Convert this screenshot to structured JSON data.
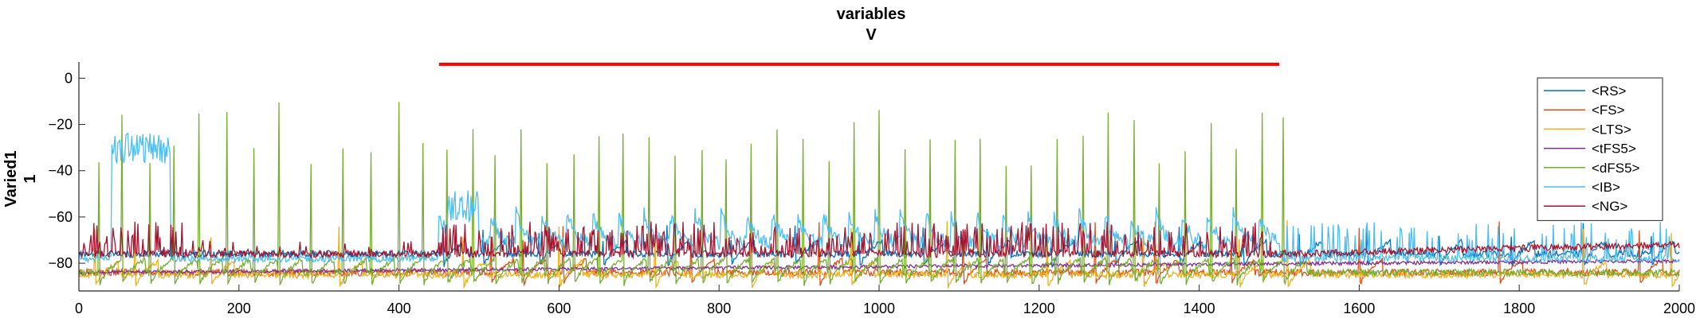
{
  "chart_data": {
    "type": "line",
    "title": "variables",
    "subtitle": "V",
    "ylabel": "Varied1",
    "ylabel2": "1",
    "xlim": [
      0,
      2000
    ],
    "ylim": [
      -92,
      7
    ],
    "xticks": [
      0,
      200,
      400,
      600,
      800,
      1000,
      1200,
      1400,
      1600,
      1800,
      2000
    ],
    "yticks": [
      0,
      -20,
      -40,
      -60,
      -80
    ],
    "grid": false,
    "legend_position": "top-right",
    "stimulus_bar": {
      "x_start": 450,
      "x_end": 1500,
      "y": 6,
      "color": "#ff0000"
    },
    "series": [
      {
        "name": "<RS>",
        "color": "#0072bd",
        "baseline": -76,
        "spike_peak": -62,
        "spike_times": [
          455,
          505,
          575,
          655,
          735,
          815,
          895,
          975,
          1055,
          1135,
          1215,
          1295,
          1375,
          1455,
          1525,
          1610,
          1700,
          1790,
          1880,
          1965
        ]
      },
      {
        "name": "<FS>",
        "color": "#d95319",
        "baseline": -84,
        "spike_peak": -62,
        "spike_times": [
          515,
          555,
          605,
          765,
          925,
          1105,
          1270,
          1345,
          1440,
          1600,
          1775,
          1950
        ]
      },
      {
        "name": "<LTS>",
        "color": "#edb120",
        "baseline": -85,
        "spike_peak": -60,
        "spike_times": [
          20,
          70,
          165,
          325,
          480,
          600,
          720,
          840,
          965,
          1085,
          1210,
          1330,
          1450,
          1510,
          1880,
          1990
        ]
      },
      {
        "name": "<tFS5>",
        "color": "#7e2f8e",
        "baseline": -82,
        "spike_peak": -82,
        "spike_times": []
      },
      {
        "name": "<dFS5>",
        "color": "#77ac30",
        "baseline": -84,
        "spike_peak": -10,
        "spike_times": [
          25,
          53,
          88,
          118,
          150,
          185,
          218,
          250,
          290,
          330,
          365,
          400,
          430,
          460,
          492,
          520,
          552,
          585,
          618,
          650,
          680,
          712,
          745,
          778,
          808,
          840,
          872,
          905,
          937,
          968,
          1000,
          1032,
          1063,
          1095,
          1126,
          1158,
          1190,
          1222,
          1254,
          1286,
          1318,
          1350,
          1382,
          1414,
          1446,
          1478,
          1505
        ]
      },
      {
        "name": "<IB>",
        "color": "#4dbeee",
        "baseline": -73,
        "spike_peak": -60,
        "spike_times": []
      },
      {
        "name": "<NG>",
        "color": "#a2142f",
        "baseline": -76,
        "spike_peak": -62,
        "spike_times": []
      }
    ]
  }
}
